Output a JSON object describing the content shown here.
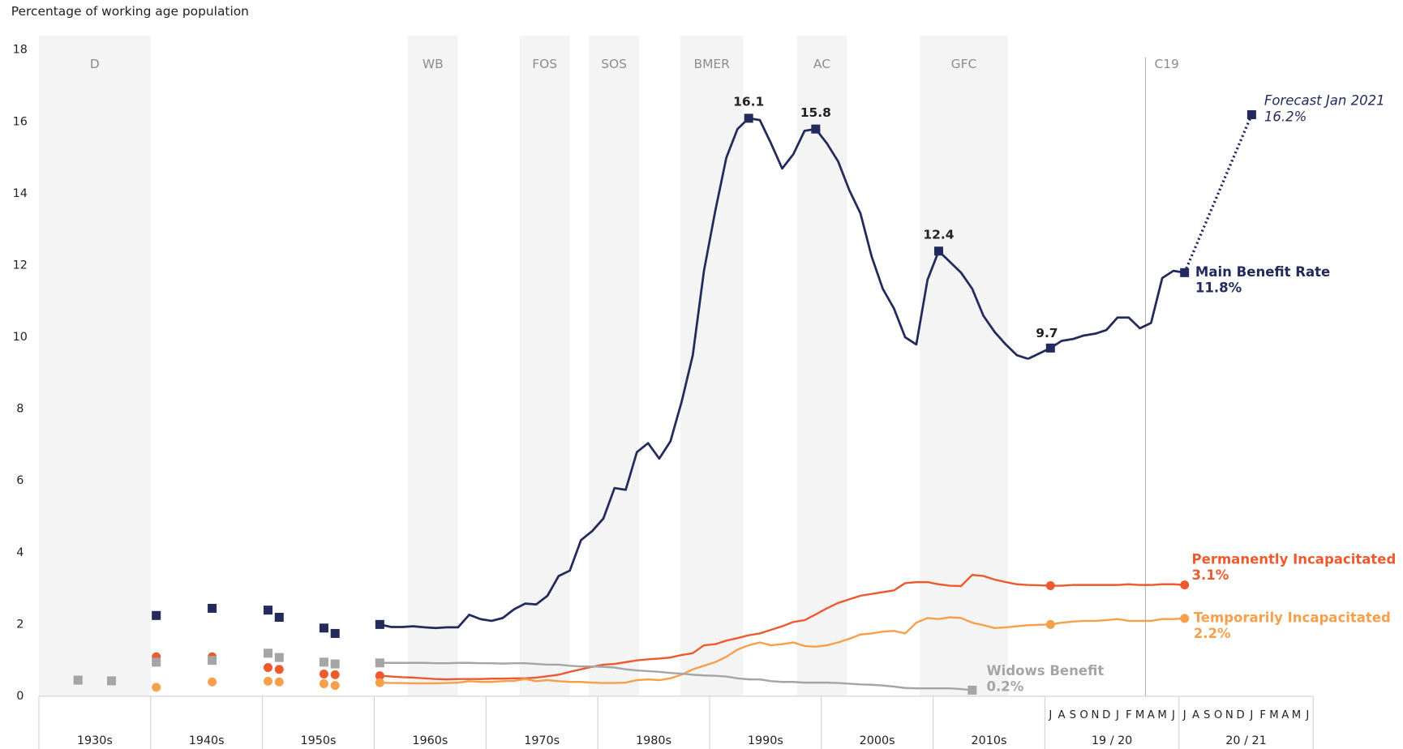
{
  "chart_data": {
    "type": "line",
    "y_axis_title": "Percentage of working age population",
    "ylim": [
      0,
      18
    ],
    "yticks": [
      0,
      2,
      4,
      6,
      8,
      10,
      12,
      14,
      16,
      18
    ],
    "xlim": [
      1930,
      2020
    ],
    "decades": [
      "1930s",
      "1940s",
      "1950s",
      "1960s",
      "1970s",
      "1980s",
      "1990s",
      "2000s",
      "2010s"
    ],
    "fiscal_years": [
      "19 / 20",
      "20 / 21"
    ],
    "months": [
      "J",
      "A",
      "S",
      "O",
      "N",
      "D",
      "J",
      "F",
      "M",
      "A",
      "M",
      "J",
      "J",
      "A",
      "S",
      "O",
      "N",
      "D",
      "J",
      "F",
      "M",
      "A",
      "M",
      "J"
    ],
    "periods": [
      {
        "label": "D",
        "start": 1930,
        "end": 1940
      },
      {
        "label": "WB",
        "start": 1963,
        "end": 1967.5
      },
      {
        "label": "FOS",
        "start": 1973,
        "end": 1977.5
      },
      {
        "label": "SOS",
        "start": 1979.2,
        "end": 1983.7
      },
      {
        "label": "BMER",
        "start": 1987.4,
        "end": 1993
      },
      {
        "label": "AC",
        "start": 1997.8,
        "end": 2002.3
      },
      {
        "label": "GFC",
        "start": 2008.8,
        "end": 2016.7
      }
    ],
    "c19": {
      "label": "C19",
      "month": 8.5
    },
    "x": [
      1960.5,
      1961.5,
      1962.5,
      1963.5,
      1964.5,
      1965.5,
      1966.5,
      1967.5,
      1968.5,
      1969.5,
      1970.5,
      1971.5,
      1972.5,
      1973.5,
      1974.5,
      1975.5,
      1976.5,
      1977.5,
      1978.5,
      1979.5,
      1980.5,
      1981.5,
      1982.5,
      1983.5,
      1984.5,
      1985.5,
      1986.5,
      1987.5,
      1988.5,
      1989.5,
      1990.5,
      1991.5,
      1992.5,
      1993.5,
      1994.5,
      1995.5,
      1996.5,
      1997.5,
      1998.5,
      1999.5,
      2000.5,
      2001.5,
      2002.5,
      2003.5,
      2004.5,
      2005.5,
      2006.5,
      2007.5,
      2008.5,
      2009.5,
      2010.5,
      2011.5,
      2012.5,
      2013.5,
      2014.5,
      2015.5,
      2016.5,
      2017.5,
      2018.5
    ],
    "series": [
      {
        "name": "Main Benefit Rate",
        "color": "#232a5c",
        "marker": "square",
        "end_label": "11.8%",
        "early_x": [
          1940.5,
          1945.5,
          1950.5,
          1951.5,
          1955.5,
          1956.5
        ],
        "early_values": [
          2.25,
          2.45,
          2.4,
          2.2,
          1.9,
          1.75
        ],
        "values": [
          2.0,
          1.93,
          1.93,
          1.95,
          1.92,
          1.9,
          1.92,
          1.92,
          2.27,
          2.15,
          2.1,
          2.18,
          2.42,
          2.58,
          2.56,
          2.8,
          3.35,
          3.5,
          4.35,
          4.6,
          4.95,
          5.8,
          5.75,
          6.8,
          7.05,
          6.62,
          7.1,
          8.2,
          9.5,
          11.85,
          13.5,
          15.0,
          15.8,
          16.1,
          16.05,
          15.4,
          14.7,
          15.1,
          15.75,
          15.8,
          15.4,
          14.9,
          14.1,
          13.45,
          12.25,
          11.35,
          10.8,
          10.0,
          9.8,
          11.6,
          12.4,
          12.1,
          11.8,
          11.35,
          10.6,
          10.15,
          9.8,
          9.5,
          9.4
        ],
        "highlights": [
          {
            "x": 1993.5,
            "value": 16.1
          },
          {
            "x": 1999.5,
            "value": 15.8
          },
          {
            "x": 2010.5,
            "value": 12.4
          }
        ],
        "monthly": [
          9.7,
          9.9,
          9.95,
          10.05,
          10.1,
          10.2,
          10.55,
          10.55,
          10.25,
          10.4,
          11.65,
          11.85,
          11.8,
          null,
          null,
          null,
          null,
          null,
          null,
          null,
          null,
          null,
          null,
          null
        ],
        "forecast": {
          "label": "Forecast Jan 2021",
          "month": 18,
          "value": 16.2,
          "value_label": "16.2%"
        }
      },
      {
        "name": "Permanently Incapacitated",
        "color": "#ee5a2f",
        "marker": "circle",
        "end_label": "3.1%",
        "early_x": [
          1940.5,
          1945.5,
          1950.5,
          1951.5,
          1955.5,
          1956.5
        ],
        "early_values": [
          1.1,
          1.1,
          0.8,
          0.75,
          0.62,
          0.6
        ],
        "values": [
          0.57,
          0.55,
          0.53,
          0.52,
          0.5,
          0.48,
          0.47,
          0.48,
          0.48,
          0.48,
          0.49,
          0.49,
          0.5,
          0.5,
          0.52,
          0.56,
          0.6,
          0.68,
          0.75,
          0.82,
          0.88,
          0.9,
          0.95,
          1.0,
          1.03,
          1.05,
          1.08,
          1.15,
          1.2,
          1.42,
          1.45,
          1.55,
          1.62,
          1.7,
          1.75,
          1.85,
          1.95,
          2.07,
          2.12,
          2.28,
          2.45,
          2.6,
          2.7,
          2.8,
          2.85,
          2.9,
          2.95,
          3.15,
          3.18,
          3.18,
          3.12,
          3.08,
          3.07,
          3.38,
          3.35,
          3.25,
          3.18,
          3.12,
          3.1
        ],
        "monthly": [
          3.08,
          3.08,
          3.1,
          3.1,
          3.1,
          3.1,
          3.1,
          3.12,
          3.1,
          3.1,
          3.12,
          3.12,
          3.1,
          null,
          null,
          null,
          null,
          null,
          null,
          null,
          null,
          null,
          null,
          null
        ]
      },
      {
        "name": "Temporarily Incapacitated",
        "color": "#f7a04b",
        "marker": "circle",
        "end_label": "2.2%",
        "early_x": [
          1940.5,
          1945.5,
          1950.5,
          1951.5,
          1955.5,
          1956.5
        ],
        "early_values": [
          0.25,
          0.4,
          0.42,
          0.4,
          0.35,
          0.3
        ],
        "values": [
          0.38,
          0.37,
          0.37,
          0.36,
          0.36,
          0.36,
          0.37,
          0.38,
          0.42,
          0.4,
          0.4,
          0.42,
          0.43,
          0.48,
          0.42,
          0.45,
          0.42,
          0.4,
          0.4,
          0.38,
          0.37,
          0.37,
          0.38,
          0.45,
          0.47,
          0.45,
          0.5,
          0.6,
          0.75,
          0.85,
          0.95,
          1.1,
          1.3,
          1.42,
          1.5,
          1.42,
          1.45,
          1.5,
          1.4,
          1.38,
          1.42,
          1.5,
          1.6,
          1.72,
          1.75,
          1.8,
          1.82,
          1.75,
          2.05,
          2.18,
          2.15,
          2.2,
          2.18,
          2.05,
          1.98,
          1.9,
          1.92,
          1.95,
          1.98
        ],
        "monthly": [
          2.0,
          2.05,
          2.08,
          2.1,
          2.1,
          2.12,
          2.15,
          2.1,
          2.1,
          2.1,
          2.15,
          2.15,
          2.17,
          null,
          null,
          null,
          null,
          null,
          null,
          null,
          null,
          null,
          null,
          null
        ]
      },
      {
        "name": "Widows Benefit",
        "color": "#a5a5a5",
        "marker": "square",
        "end_label": "0.2%",
        "early_x": [
          1933.5,
          1936.5,
          1940.5,
          1945.5,
          1950.5,
          1951.5,
          1955.5,
          1956.5
        ],
        "early_values": [
          0.45,
          0.43,
          0.95,
          1.0,
          1.2,
          1.08,
          0.95,
          0.9
        ],
        "values": [
          0.93,
          0.93,
          0.93,
          0.93,
          0.93,
          0.92,
          0.92,
          0.93,
          0.93,
          0.92,
          0.92,
          0.91,
          0.92,
          0.92,
          0.9,
          0.88,
          0.88,
          0.85,
          0.83,
          0.83,
          0.82,
          0.8,
          0.75,
          0.72,
          0.7,
          0.68,
          0.65,
          0.63,
          0.6,
          0.58,
          0.57,
          0.55,
          0.5,
          0.47,
          0.47,
          0.42,
          0.4,
          0.4,
          0.38,
          0.38,
          0.38,
          0.37,
          0.35,
          0.33,
          0.32,
          0.3,
          0.27,
          0.23,
          0.22,
          0.22,
          0.22,
          0.22,
          0.2,
          0.17,
          null,
          null,
          null,
          null,
          null
        ]
      }
    ]
  }
}
